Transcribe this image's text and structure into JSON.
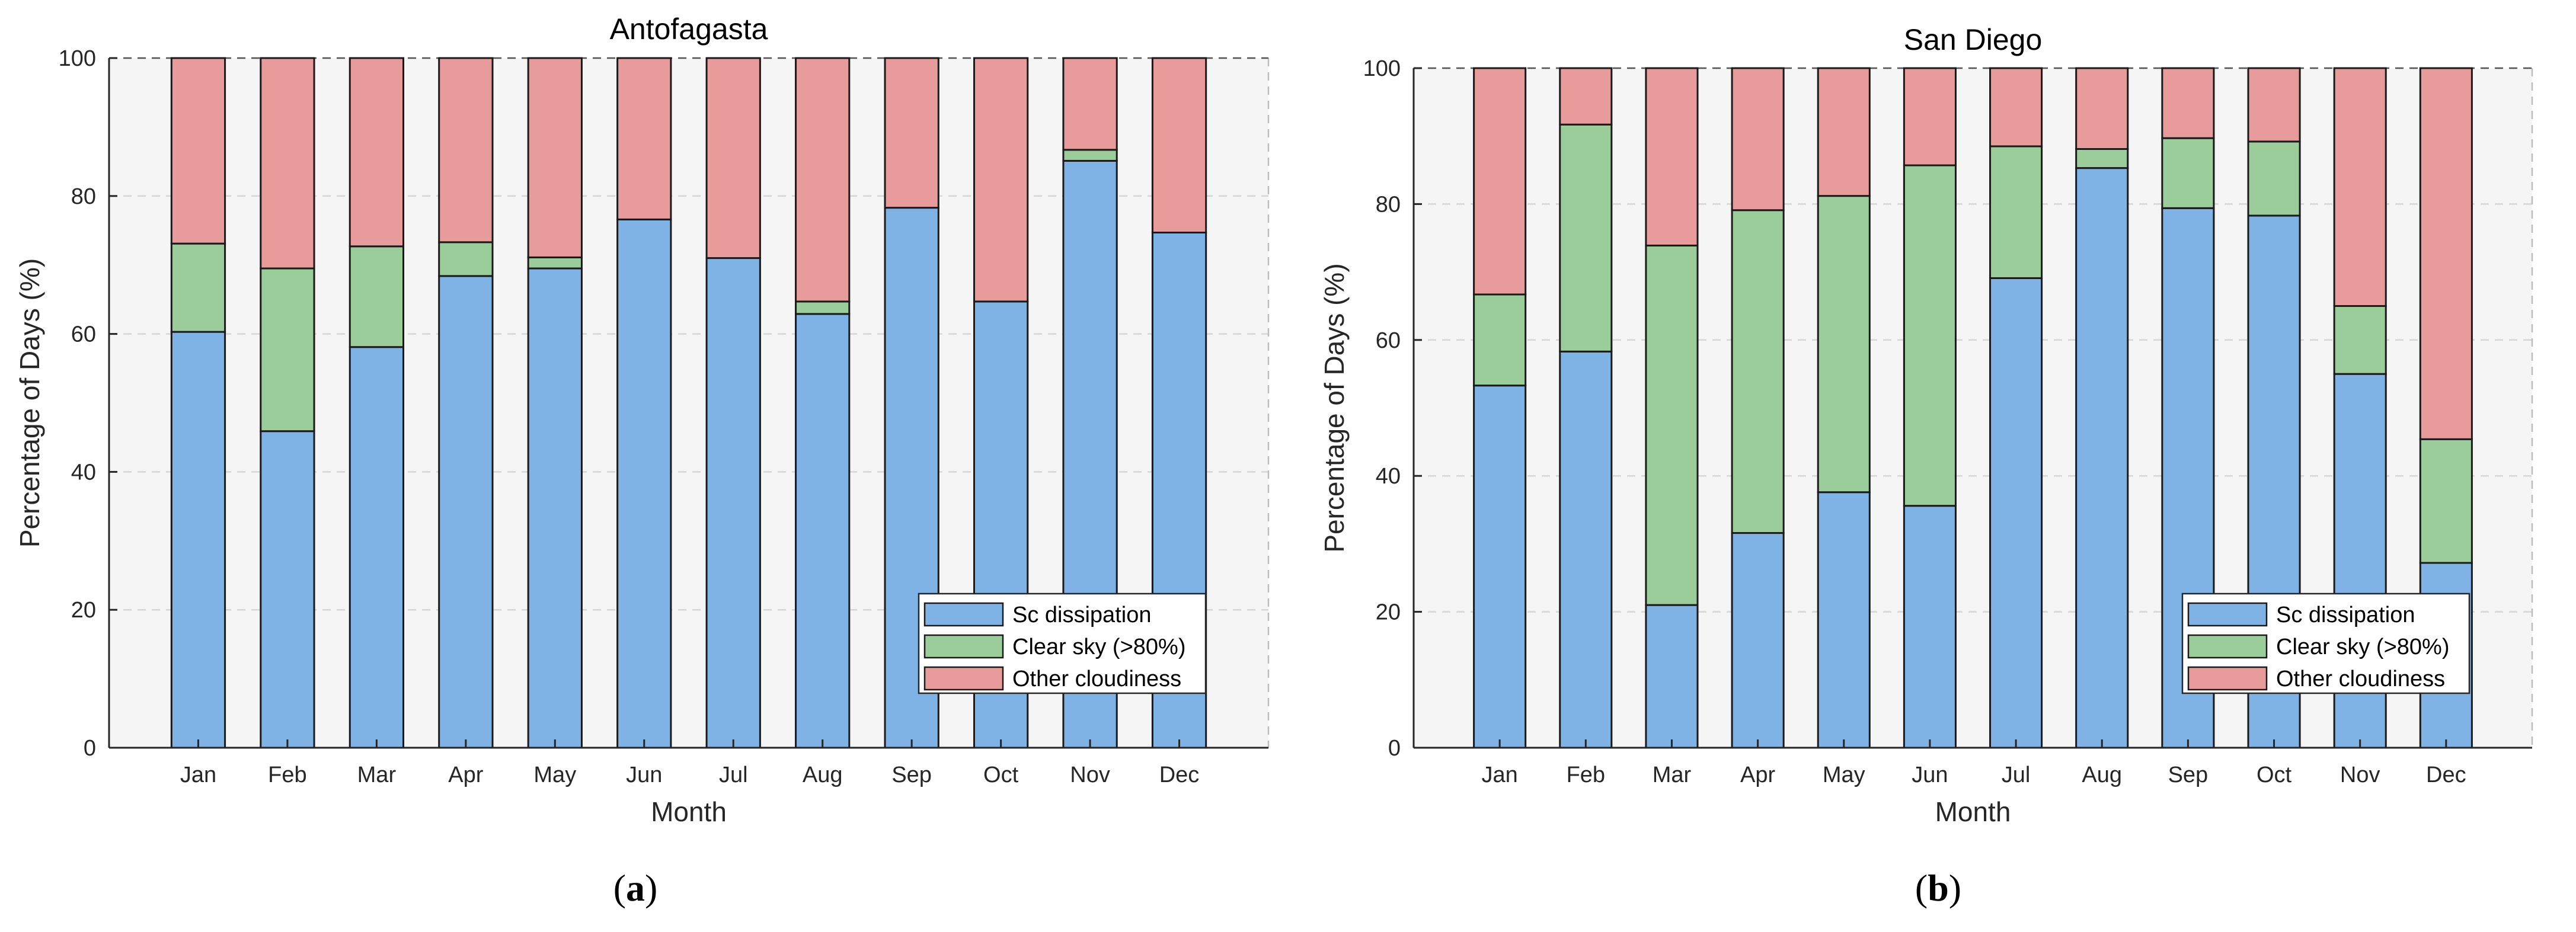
{
  "colors": {
    "sc_dissipation": "#7fb2e5",
    "clear_sky": "#9acd9a",
    "other_cloudiness": "#e89b9b",
    "axes_background": "#f5f5f5",
    "grid": "#d6d6d6",
    "bar_edge": "#1a1a1a"
  },
  "chart_data": [
    {
      "id": "antofagasta",
      "panel_label": "a",
      "type": "bar",
      "stacked": true,
      "title": "Antofagasta",
      "xlabel": "Month",
      "ylabel": "Percentage of Days (%)",
      "ylim": [
        0,
        100
      ],
      "yticks": [
        0,
        20,
        40,
        60,
        80,
        100
      ],
      "grid": true,
      "legend": "bottom-right",
      "categories": [
        "Jan",
        "Feb",
        "Mar",
        "Apr",
        "May",
        "Jun",
        "Jul",
        "Aug",
        "Sep",
        "Oct",
        "Nov",
        "Dec"
      ],
      "series": [
        {
          "name": "Sc dissipation",
          "color_key": "sc_dissipation",
          "values": [
            60.3,
            45.9,
            58.1,
            68.4,
            69.5,
            76.6,
            71.0,
            62.9,
            78.3,
            64.7,
            85.1,
            74.7
          ]
        },
        {
          "name": "Clear sky (>80%)",
          "color_key": "clear_sky",
          "values": [
            12.8,
            23.6,
            14.6,
            4.9,
            1.6,
            0.0,
            0.0,
            1.8,
            0.0,
            0.0,
            1.6,
            0.0
          ]
        },
        {
          "name": "Other cloudiness",
          "color_key": "other_cloudiness",
          "values": [
            26.9,
            30.5,
            27.3,
            26.7,
            28.9,
            23.4,
            29.0,
            35.3,
            21.7,
            35.3,
            13.3,
            25.3
          ]
        }
      ]
    },
    {
      "id": "san_diego",
      "panel_label": "b",
      "type": "bar",
      "stacked": true,
      "title": "San Diego",
      "xlabel": "Month",
      "ylabel": "Percentage of Days (%)",
      "ylim": [
        0,
        100
      ],
      "yticks": [
        0,
        20,
        40,
        60,
        80,
        100
      ],
      "grid": true,
      "legend": "bottom-right",
      "categories": [
        "Jan",
        "Feb",
        "Mar",
        "Apr",
        "May",
        "Jun",
        "Jul",
        "Aug",
        "Sep",
        "Oct",
        "Nov",
        "Dec"
      ],
      "series": [
        {
          "name": "Sc dissipation",
          "color_key": "sc_dissipation",
          "values": [
            53.3,
            58.3,
            21.0,
            31.6,
            37.6,
            35.6,
            69.1,
            85.3,
            79.4,
            78.3,
            55.0,
            27.2
          ]
        },
        {
          "name": "Clear sky (>80%)",
          "color_key": "clear_sky",
          "values": [
            13.4,
            33.4,
            52.9,
            47.5,
            43.6,
            50.1,
            19.4,
            2.8,
            10.3,
            10.9,
            10.0,
            18.2
          ]
        },
        {
          "name": "Other cloudiness",
          "color_key": "other_cloudiness",
          "values": [
            33.3,
            8.3,
            26.1,
            20.9,
            18.8,
            14.3,
            11.5,
            11.9,
            10.3,
            10.8,
            35.0,
            54.6
          ]
        }
      ]
    }
  ]
}
